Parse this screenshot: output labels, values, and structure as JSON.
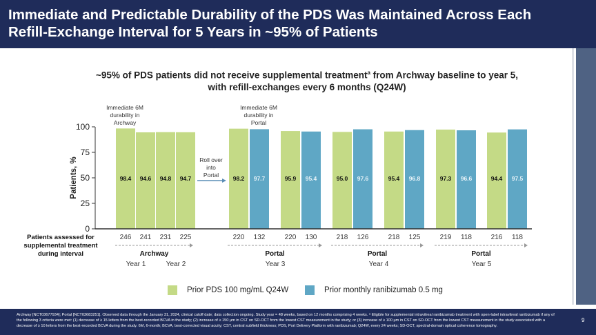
{
  "header": {
    "title": "Immediate and Predictable Durability of the PDS Was Maintained Across Each Refill-Exchange Interval for 5 Years in ~95% of Patients"
  },
  "subtitle": {
    "line1_pre": "~95% of PDS patients did not receive supplemental treatment",
    "sup": "a",
    "line1_post": " from Archway baseline to year 5,",
    "line2": "with refill-exchanges every 6 months (Q24W)"
  },
  "chart_data": {
    "type": "bar",
    "ylabel": "Patients, %",
    "ylim": [
      0,
      100
    ],
    "yticks": [
      0,
      25,
      50,
      75,
      100
    ],
    "row_label": "Patients assessed for supplemental treatment during interval",
    "series": [
      {
        "name": "Prior PDS 100 mg/mL Q24W",
        "color": "#c4da86"
      },
      {
        "name": "Prior monthly ranibizumab 0.5 mg",
        "color": "#5fa7c5"
      }
    ],
    "bars": [
      {
        "series": 0,
        "value": 98.4,
        "n": 246
      },
      {
        "series": 0,
        "value": 94.6,
        "n": 241
      },
      {
        "series": 0,
        "value": 94.8,
        "n": 231
      },
      {
        "series": 0,
        "value": 94.7,
        "n": 225
      },
      {
        "series": 0,
        "value": 98.2,
        "n": 220
      },
      {
        "series": 1,
        "value": 97.7,
        "n": 132
      },
      {
        "series": 0,
        "value": 95.9,
        "n": 220
      },
      {
        "series": 1,
        "value": 95.4,
        "n": 130
      },
      {
        "series": 0,
        "value": 95.0,
        "n": 218
      },
      {
        "series": 1,
        "value": 97.6,
        "n": 126
      },
      {
        "series": 0,
        "value": 95.4,
        "n": 218
      },
      {
        "series": 1,
        "value": 96.8,
        "n": 125
      },
      {
        "series": 0,
        "value": 97.3,
        "n": 219
      },
      {
        "series": 1,
        "value": 96.6,
        "n": 118
      },
      {
        "series": 0,
        "value": 94.4,
        "n": 216
      },
      {
        "series": 1,
        "value": 97.5,
        "n": 118
      }
    ],
    "studies": [
      "Archway",
      "Portal",
      "Portal",
      "Portal"
    ],
    "years": [
      "Year 1",
      "Year 2",
      "Year 3",
      "Year 4",
      "Year 5"
    ],
    "annotations": {
      "archway": [
        "Immediate 6M",
        "durability in",
        "Archway"
      ],
      "portal": [
        "Immediate 6M",
        "durability in",
        "Portal"
      ],
      "rollover": [
        "Roll over",
        "into",
        "Portal"
      ]
    }
  },
  "footer": {
    "footnote": "Archway [NCT03677934]; Portal [NCT03683251]. Observed data through the January 31, 2024, clinical cutoff date; data collection ongoing. Study year = 48 weeks, based on 12 months comprising 4 weeks. ᵃ Eligible for supplemental intravitreal ranibizumab treatment with open-label intravitreal ranibizumab if any of the following 3 criteria were met: (1) decrease of ≥ 15 letters from the best-recorded BCVA in the study; (2) increase of ≥ 150 µm in CST on SD-OCT from the lowest CST measurement in the study; or (3) increase of ≥ 100 µm in CST on SD-OCT from the lowest CST measurement in the study associated with a decrease of ≥ 10 letters from the best-recorded BCVA during the study. 6M, 6-month; BCVA, best-corrected visual acuity; CST, central subfield thickness; PDS, Port Delivery Platform with ranibizumab; Q24W, every 24 weeks; SD-OCT, spectral-domain optical coherence tomography.",
    "page": "9"
  }
}
